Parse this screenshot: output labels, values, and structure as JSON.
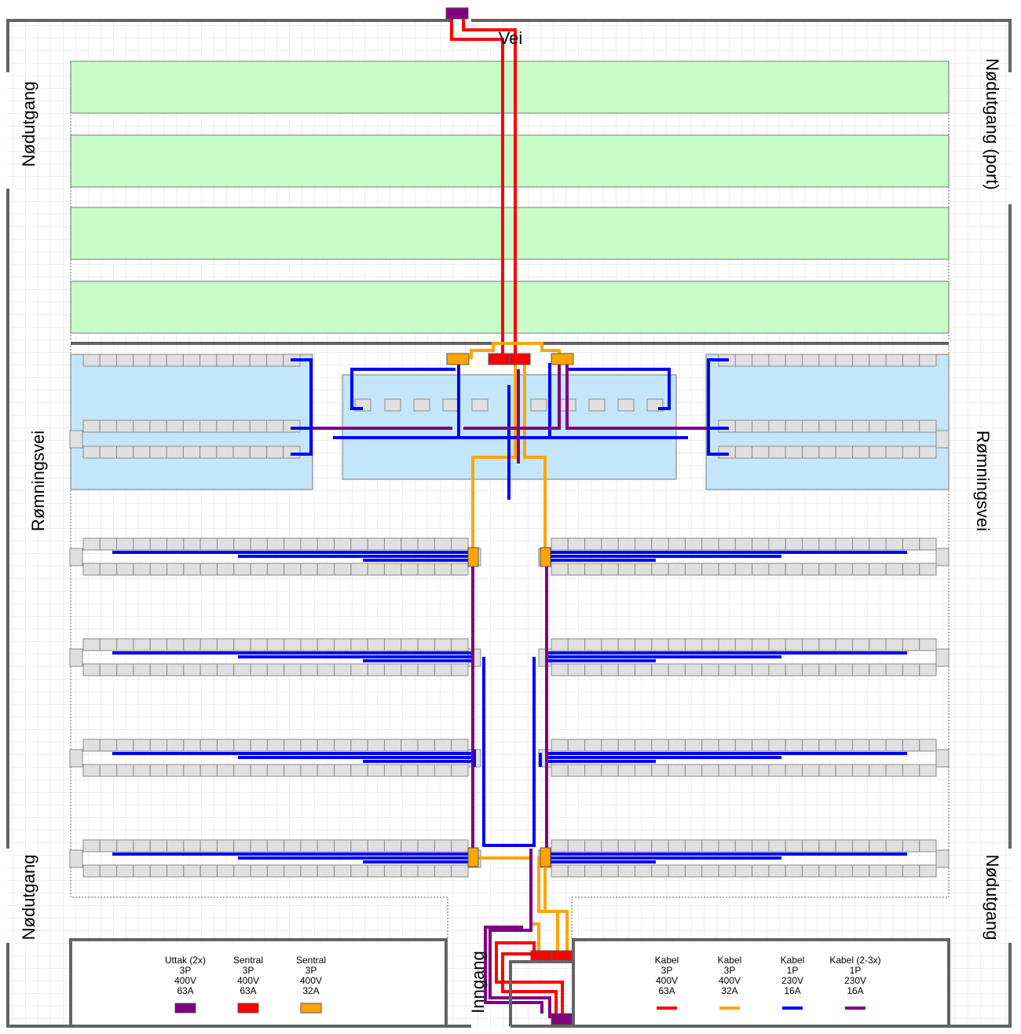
{
  "labels": {
    "road": "Vei",
    "emergency_exit": "Nødutgang",
    "emergency_exit_port": "Nødutgang (port)",
    "escape_route": "Rømningsvei",
    "entrance": "Inngang"
  },
  "legend_left": [
    {
      "lines": [
        "Uttak (2x)",
        "3P",
        "400V",
        "63A"
      ],
      "color": "#800080",
      "swatch": "box"
    },
    {
      "lines": [
        "Sentral",
        "3P",
        "400V",
        "63A"
      ],
      "color": "#ff0000",
      "swatch": "box"
    },
    {
      "lines": [
        "Sentral",
        "3P",
        "400V",
        "32A"
      ],
      "color": "#ffa500",
      "swatch": "box"
    }
  ],
  "legend_right": [
    {
      "lines": [
        "Kabel",
        "3P",
        "400V",
        "63A"
      ],
      "color": "#ff0000",
      "swatch": "line"
    },
    {
      "lines": [
        "Kabel",
        "3P",
        "400V",
        "32A"
      ],
      "color": "#ffa500",
      "swatch": "line"
    },
    {
      "lines": [
        "Kabel",
        "1P",
        "230V",
        "16A"
      ],
      "color": "#0000ff",
      "swatch": "line"
    },
    {
      "lines": [
        "Kabel (2-3x)",
        "1P",
        "230V",
        "16A"
      ],
      "color": "#800080",
      "swatch": "line"
    }
  ],
  "colors": {
    "green_area": "#c8fcc8",
    "blue_area": "#c4e6fa",
    "wall": "#646464",
    "grid": "#e0e0e0",
    "cabinet": "#e0e0e0"
  }
}
